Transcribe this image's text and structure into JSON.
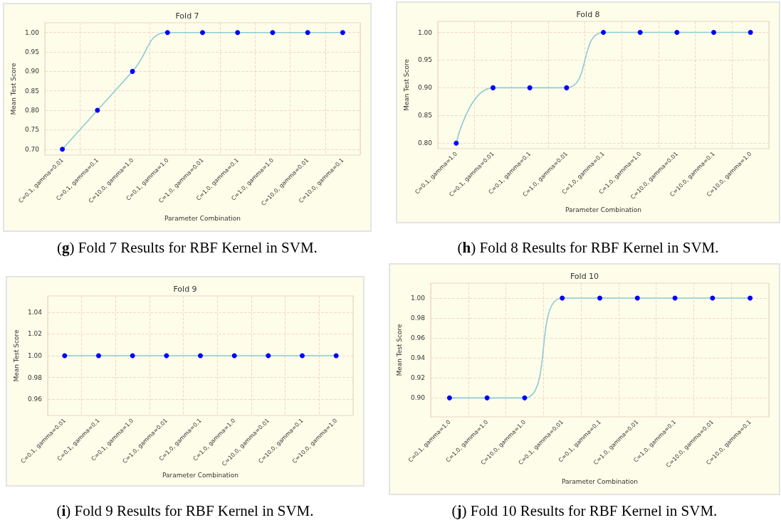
{
  "chart_data": [
    {
      "type": "line",
      "title": "Fold 7",
      "xlabel": "Parameter Combination",
      "ylabel": "Mean Test Score",
      "categories": [
        "C=0.1, gamma=0.01",
        "C=0.1, gamma=0.1",
        "C=10.0, gamma=1.0",
        "C=0.1, gamma=1.0",
        "C=1.0, gamma=0.01",
        "C=1.0, gamma=0.1",
        "C=1.0, gamma=1.0",
        "C=10.0, gamma=0.01",
        "C=10.0, gamma=0.1"
      ],
      "series": [
        {
          "color": "#8ccbd6",
          "colors": [
            "#0000ff",
            "#0000ff",
            "#0000ff",
            "#0000ff",
            "#0000ff",
            "#0000ff",
            "#0000ff",
            "#0000ff",
            "#0000ff"
          ],
          "values": [
            0.7,
            0.8,
            0.9,
            1.0,
            1.0,
            1.0,
            1.0,
            1.0,
            1.0
          ]
        }
      ],
      "ylim": [
        0.685,
        1.025
      ],
      "yticks": [
        {
          "value": 0.7,
          "label": "0.70"
        },
        {
          "value": 0.75,
          "label": "0.75"
        },
        {
          "value": 0.8,
          "label": "0.80"
        },
        {
          "value": 0.85,
          "label": "0.85"
        },
        {
          "value": 0.9,
          "label": "0.90"
        },
        {
          "value": 0.95,
          "label": "0.95"
        },
        {
          "value": 1.0,
          "label": "1.00"
        }
      ],
      "grid": true,
      "marker": "circle",
      "line_style": "solid",
      "annotations": [
        "(g) Fold 7 Results for RBF Kernel in SVM."
      ]
    },
    {
      "type": "line",
      "title": "Fold 8",
      "xlabel": "Parameter Combination",
      "ylabel": "Mean Test Score",
      "categories": [
        "C=0.1, gamma=1.0",
        "C=0.1, gamma=0.01",
        "C=0.1, gamma=0.1",
        "C=1.0, gamma=0.01",
        "C=1.0, gamma=0.1",
        "C=1.0, gamma=1.0",
        "C=10.0, gamma=0.01",
        "C=10.0, gamma=0.1",
        "C=10.0, gamma=1.0"
      ],
      "series": [
        {
          "color": "#8ccbd6",
          "colors": [
            "#0000ff",
            "#0000ff",
            "#0000ff",
            "#0000ff",
            "#0000ff",
            "#0000ff",
            "#0000ff",
            "#0000ff",
            "#0000ff"
          ],
          "values": [
            0.8,
            0.9,
            0.9,
            0.9,
            1.0,
            1.0,
            1.0,
            1.0,
            1.0
          ]
        }
      ],
      "ylim": [
        0.79,
        1.02
      ],
      "yticks": [
        {
          "value": 0.8,
          "label": "0.80"
        },
        {
          "value": 0.85,
          "label": "0.85"
        },
        {
          "value": 0.9,
          "label": "0.90"
        },
        {
          "value": 0.95,
          "label": "0.95"
        },
        {
          "value": 1.0,
          "label": "1.00"
        }
      ],
      "grid": true,
      "marker": "circle",
      "line_style": "solid",
      "annotations": [
        "(h) Fold 8 Results for RBF Kernel in SVM."
      ]
    },
    {
      "type": "line",
      "title": "Fold 9",
      "xlabel": "Parameter Combination",
      "ylabel": "Mean Test Score",
      "categories": [
        "C=0.1, gamma=0.01",
        "C=0.1, gamma=0.1",
        "C=0.1, gamma=1.0",
        "C=1.0, gamma=0.01",
        "C=1.0, gamma=0.1",
        "C=1.0, gamma=1.0",
        "C=10.0, gamma=0.01",
        "C=10.0, gamma=0.1",
        "C=10.0, gamma=1.0"
      ],
      "series": [
        {
          "color": "#8ccbd6",
          "colors": [
            "#0000ff",
            "#0000ff",
            "#0000ff",
            "#0000ff",
            "#0000ff",
            "#0000ff",
            "#0000ff",
            "#0000ff",
            "#0000ff"
          ],
          "values": [
            1.0,
            1.0,
            1.0,
            1.0,
            1.0,
            1.0,
            1.0,
            1.0,
            1.0
          ]
        }
      ],
      "ylim": [
        0.945,
        1.055
      ],
      "yticks": [
        {
          "value": 0.96,
          "label": "0.96"
        },
        {
          "value": 0.98,
          "label": "0.98"
        },
        {
          "value": 1.0,
          "label": "1.00"
        },
        {
          "value": 1.02,
          "label": "1.02"
        },
        {
          "value": 1.04,
          "label": "1.04"
        }
      ],
      "grid": true,
      "marker": "circle",
      "line_style": "solid",
      "annotations": [
        "(i) Fold 9 Results for RBF Kernel in SVM."
      ]
    },
    {
      "type": "line",
      "title": "Fold 10",
      "xlabel": "Parameter Combination",
      "ylabel": "Mean Test Score",
      "categories": [
        "C=0.1, gamma=1.0",
        "C=1.0, gamma=1.0",
        "C=10.0, gamma=1.0",
        "C=0.1, gamma=0.01",
        "C=0.1, gamma=0.1",
        "C=1.0, gamma=0.01",
        "C=1.0, gamma=0.1",
        "C=10.0, gamma=0.01",
        "C=10.0, gamma=0.1"
      ],
      "series": [
        {
          "color": "#8ccbd6",
          "colors": [
            "#0000ff",
            "#0000ff",
            "#0000ff",
            "#0000ff",
            "#0000ff",
            "#0000ff",
            "#0000ff",
            "#0000ff",
            "#0000ff"
          ],
          "values": [
            0.9,
            0.9,
            0.9,
            1.0,
            1.0,
            1.0,
            1.0,
            1.0,
            1.0
          ]
        }
      ],
      "ylim": [
        0.881,
        1.015
      ],
      "yticks": [
        {
          "value": 0.9,
          "label": "0.90"
        },
        {
          "value": 0.92,
          "label": "0.92"
        },
        {
          "value": 0.94,
          "label": "0.94"
        },
        {
          "value": 0.96,
          "label": "0.96"
        },
        {
          "value": 0.98,
          "label": "0.98"
        },
        {
          "value": 1.0,
          "label": "1.00"
        }
      ],
      "grid": true,
      "marker": "circle",
      "line_style": "solid",
      "annotations": [
        "(j) Fold 10 Results for RBF Kernel in SVM."
      ]
    }
  ]
}
